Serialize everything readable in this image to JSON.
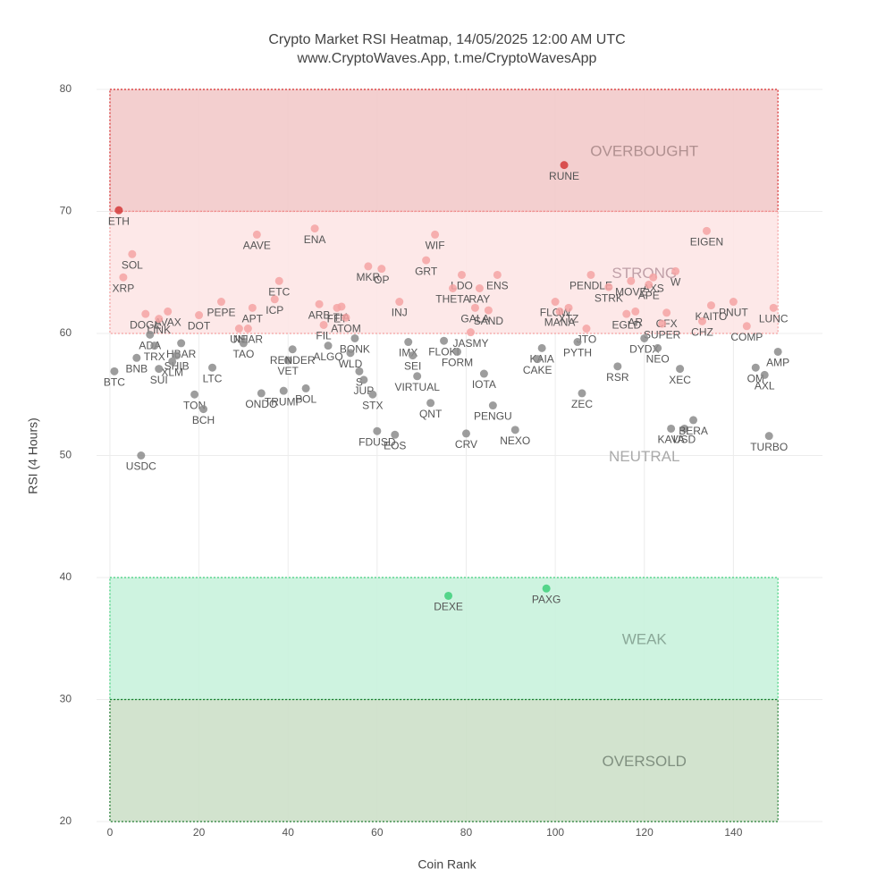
{
  "chart_data": {
    "type": "scatter",
    "title": "Crypto Market RSI Heatmap, 14/05/2025 12:00 AM UTC",
    "subtitle": "www.CryptoWaves.App, t.me/CryptoWavesApp",
    "x_label": "Coin Rank",
    "y_label": "RSI (4 Hours)",
    "xlim": [
      -3,
      160
    ],
    "ylim": [
      20,
      80
    ],
    "xticks": [
      0,
      20,
      40,
      60,
      80,
      100,
      120,
      140
    ],
    "yticks": [
      20,
      30,
      40,
      50,
      60,
      70,
      80
    ],
    "grid": true,
    "zones": [
      {
        "label": "OVERBOUGHT",
        "x": [
          0,
          150
        ],
        "y": [
          70,
          80
        ],
        "color": "#f2caca",
        "border": "#d62728",
        "label_color": "#b09090"
      },
      {
        "label": "STRONG",
        "x": [
          0,
          150
        ],
        "y": [
          60,
          70
        ],
        "color": "#fde5e5",
        "border": "#f4a0a0",
        "label_color": "#c0a0a8"
      },
      {
        "label": "NEUTRAL",
        "x": [
          0,
          150
        ],
        "y": [
          40,
          60
        ],
        "label_color": "#aaaaaa"
      },
      {
        "label": "WEAK",
        "x": [
          0,
          150
        ],
        "y": [
          30,
          40
        ],
        "color": "#c9f2dd",
        "border": "#3ecf7a",
        "label_color": "#8aa898"
      },
      {
        "label": "OVERSOLD",
        "x": [
          0,
          150
        ],
        "y": [
          20,
          30
        ],
        "color": "#cde0c9",
        "border": "#1e7a2e",
        "label_color": "#809080"
      }
    ],
    "series": [
      {
        "color": "#d33a3a",
        "labels": [
          "RUNE",
          "ETH"
        ],
        "x": [
          102,
          2
        ],
        "values": [
          73.8,
          70.1
        ]
      },
      {
        "color": "#f5a3a3",
        "labels": [
          "SOL",
          "XRP",
          "AAVE",
          "ENA",
          "WIF",
          "GRT",
          "MKR",
          "OP",
          "ETC",
          "ICP",
          "PEPE",
          "APT",
          "ARB",
          "FET",
          "TIA",
          "ATOM",
          "FIL",
          "INJ",
          "LDO",
          "THETA",
          "ENS",
          "RAY",
          "GALA",
          "SAND",
          "JASMY",
          "DOGE",
          "AVAX",
          "LINK",
          "DOT",
          "UNI",
          "NEAR",
          "FLOW",
          "MANA",
          "XTZ",
          "JTO",
          "PENDLE",
          "STRK",
          "MOVE",
          "AXS",
          "APE",
          "W",
          "AR",
          "EGLD",
          "CFX",
          "SUPER",
          "KAITO",
          "EIGEN",
          "PNUT",
          "CHZ",
          "COMP",
          "LUNC"
        ],
        "x": [
          5,
          3,
          33,
          46,
          73,
          71,
          58,
          61,
          38,
          37,
          25,
          32,
          47,
          51,
          52,
          53,
          48,
          65,
          79,
          77,
          87,
          83,
          82,
          85,
          81,
          8,
          13,
          11,
          20,
          29,
          31,
          100,
          101,
          103,
          107,
          108,
          112,
          117,
          122,
          121,
          127,
          118,
          116,
          125,
          124,
          135,
          134,
          140,
          133,
          143,
          149
        ],
        "values": [
          66.5,
          64.6,
          68.1,
          68.6,
          68.1,
          66.0,
          65.5,
          65.3,
          64.3,
          62.8,
          62.6,
          62.1,
          62.4,
          62.1,
          62.2,
          61.3,
          60.7,
          62.6,
          64.8,
          63.7,
          64.8,
          63.7,
          62.1,
          61.9,
          60.1,
          61.6,
          61.8,
          61.2,
          61.5,
          60.4,
          60.4,
          62.6,
          61.8,
          62.1,
          60.4,
          64.8,
          63.8,
          64.3,
          64.6,
          64.0,
          65.1,
          61.8,
          61.6,
          61.7,
          60.8,
          62.3,
          68.4,
          62.6,
          61.0,
          60.6,
          62.1
        ]
      },
      {
        "color": "#8c8c8c",
        "labels": [
          "BTC",
          "BNB",
          "ADA",
          "TRX",
          "HBAR",
          "SHIB",
          "XLM",
          "SUI",
          "LTC",
          "TON",
          "BCH",
          "TAO",
          "ONDO",
          "TRUMP",
          "POL",
          "VET",
          "RENDER",
          "ALGO",
          "BONK",
          "WLD",
          "S",
          "JUP",
          "STX",
          "FDUSD",
          "EOS",
          "IMX",
          "SEI",
          "VIRTUAL",
          "QNT",
          "FLOKI",
          "FORM",
          "IOTA",
          "PENGU",
          "CRV",
          "NEXO",
          "KAIA",
          "CAKE",
          "PYTH",
          "ZEC",
          "RSR",
          "DYDX",
          "NEO",
          "XEC",
          "KAVA",
          "USD",
          "BERA",
          "OM",
          "AXL",
          "AMP",
          "TURBO",
          "USDC"
        ],
        "x": [
          1,
          6,
          9,
          10,
          16,
          15,
          14,
          11,
          23,
          19,
          21,
          30,
          34,
          39,
          44,
          40,
          41,
          49,
          55,
          54,
          56,
          57,
          59,
          60,
          64,
          67,
          68,
          69,
          72,
          75,
          78,
          84,
          86,
          80,
          91,
          97,
          96,
          105,
          106,
          114,
          120,
          123,
          128,
          126,
          129,
          131,
          145,
          147,
          150,
          148,
          7
        ],
        "values": [
          56.9,
          58.0,
          59.9,
          59.0,
          59.2,
          58.2,
          57.7,
          57.1,
          57.2,
          55.0,
          53.8,
          59.2,
          55.1,
          55.3,
          55.5,
          57.8,
          58.7,
          59.0,
          59.6,
          58.4,
          56.9,
          56.2,
          55.0,
          52.0,
          51.7,
          59.3,
          58.2,
          56.5,
          54.3,
          59.4,
          58.5,
          56.7,
          54.1,
          51.8,
          52.1,
          58.8,
          57.9,
          59.3,
          55.1,
          57.3,
          59.6,
          58.8,
          57.1,
          52.2,
          52.2,
          52.9,
          57.2,
          56.6,
          58.5,
          51.6,
          50.0
        ]
      },
      {
        "color": "#3ecf7a",
        "labels": [
          "DEXE",
          "PAXG"
        ],
        "x": [
          76,
          98
        ],
        "values": [
          38.5,
          39.1
        ]
      }
    ]
  }
}
